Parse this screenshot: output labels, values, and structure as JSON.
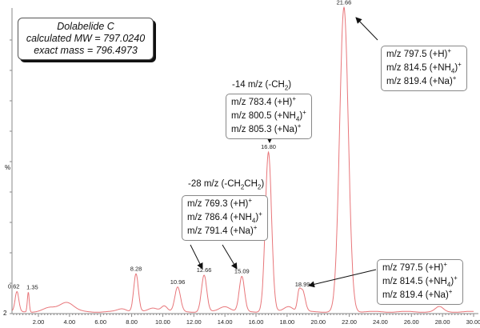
{
  "chart_data": {
    "type": "line",
    "xlabel": "",
    "ylabel": "%",
    "xlim": [
      0.3,
      30.0
    ],
    "ylim": [
      0,
      100
    ],
    "x_ticks": [
      "2.00",
      "4.00",
      "6.00",
      "8.00",
      "10.00",
      "12.00",
      "14.00",
      "16.00",
      "18.00",
      "20.00",
      "22.00",
      "24.00",
      "26.00",
      "28.00",
      "30.00"
    ],
    "y_tick_label": "2",
    "line_color": "#e8767a",
    "peaks": [
      {
        "rt": 0.62,
        "height": 6.5,
        "width": 0.12,
        "label": "0.62"
      },
      {
        "rt": 1.35,
        "height": 6.5,
        "width": 0.06,
        "label": "1.35"
      },
      {
        "rt": 2.7,
        "height": 1.2,
        "width": 0.4,
        "label": ""
      },
      {
        "rt": 3.8,
        "height": 3.2,
        "width": 0.45,
        "label": ""
      },
      {
        "rt": 7.4,
        "height": 1.0,
        "width": 0.3,
        "label": ""
      },
      {
        "rt": 8.28,
        "height": 12.5,
        "width": 0.15,
        "label": "8.28"
      },
      {
        "rt": 9.4,
        "height": 1.2,
        "width": 0.3,
        "label": ""
      },
      {
        "rt": 10.1,
        "height": 2.0,
        "width": 0.2,
        "label": ""
      },
      {
        "rt": 10.96,
        "height": 8.0,
        "width": 0.18,
        "label": "10.96"
      },
      {
        "rt": 12.66,
        "height": 12.0,
        "width": 0.17,
        "label": "12.66"
      },
      {
        "rt": 14.0,
        "height": 1.8,
        "width": 0.35,
        "label": ""
      },
      {
        "rt": 15.09,
        "height": 11.5,
        "width": 0.17,
        "label": "15.09"
      },
      {
        "rt": 16.8,
        "height": 52.5,
        "width": 0.2,
        "label": "16.80"
      },
      {
        "rt": 18.1,
        "height": 1.8,
        "width": 0.3,
        "label": ""
      },
      {
        "rt": 18.75,
        "height": 4.5,
        "width": 0.1,
        "label": ""
      },
      {
        "rt": 18.99,
        "height": 7.0,
        "width": 0.17,
        "label": "18.99"
      },
      {
        "rt": 21.66,
        "height": 100,
        "width": 0.28,
        "label": "21.66"
      },
      {
        "rt": 27.8,
        "height": 1.6,
        "width": 0.25,
        "label": ""
      }
    ]
  },
  "compound_box": {
    "name": "Dolabelide C",
    "mw": "calculated MW = 797.0240",
    "exact": "exact mass = 796.4973"
  },
  "annotations": {
    "peak_2166": [
      {
        "pre": "m/z 797.5 (+H",
        "sub": "",
        "post": ")",
        "sup": "+"
      },
      {
        "pre": "m/z 814.5 (+NH",
        "sub": "4",
        "post": ")",
        "sup": "+"
      },
      {
        "pre": "m/z 819.4 (+Na",
        "sub": "",
        "post": ")",
        "sup": "+"
      }
    ],
    "minus14_note": {
      "pre": "-14 m/z (-CH",
      "sub": "2",
      "post": ")"
    },
    "peak_1680": [
      {
        "pre": "m/z 783.4 (+H",
        "sub": "",
        "post": ")",
        "sup": "+"
      },
      {
        "pre": "m/z 800.5 (+NH",
        "sub": "4",
        "post": ")",
        "sup": "+"
      },
      {
        "pre": "m/z 805.3 (+Na",
        "sub": "",
        "post": ")",
        "sup": "+"
      }
    ],
    "minus28_note": {
      "pre": "-28 m/z (-CH",
      "sub": "2",
      "mid": "CH",
      "sub2": "2",
      "post": ")"
    },
    "peak_1266_1509": [
      {
        "pre": "m/z 769.3 (+H",
        "sub": "",
        "post": ")",
        "sup": "+"
      },
      {
        "pre": "m/z 786.4 (+NH",
        "sub": "4",
        "post": ")",
        "sup": "+"
      },
      {
        "pre": "m/z 791.4 (+Na",
        "sub": "",
        "post": ")",
        "sup": "+"
      }
    ],
    "peak_1899": [
      {
        "pre": "m/z 797.5 (+H",
        "sub": "",
        "post": ")",
        "sup": "+"
      },
      {
        "pre": "m/z 814.5 (+NH",
        "sub": "4",
        "post": ")",
        "sup": "+"
      },
      {
        "pre": "m/z 819.4 (+Na",
        "sub": "",
        "post": ")",
        "sup": "+"
      }
    ]
  }
}
